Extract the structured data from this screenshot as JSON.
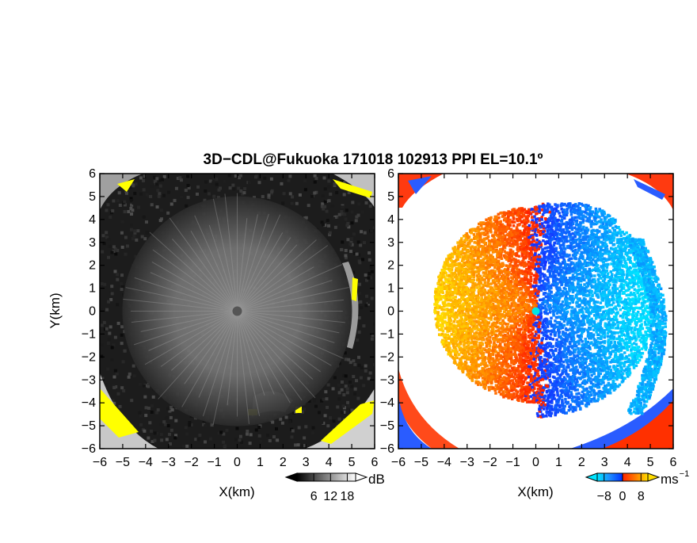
{
  "title": "3D−CDL@Fukuoka 171018 102913 PPI EL=10.1º",
  "chart_data": [
    {
      "type": "heatmap",
      "title": "",
      "xlabel": "X(km)",
      "ylabel": "Y(km)",
      "xlim": [
        -6,
        6
      ],
      "ylim": [
        -6,
        6
      ],
      "xticks": [
        "−6",
        "−5",
        "−4",
        "−3",
        "−2",
        "−1",
        "0",
        "1",
        "2",
        "3",
        "4",
        "5",
        "6"
      ],
      "yticks": [
        "−6",
        "−5",
        "−4",
        "−3",
        "−2",
        "−1",
        "0",
        "1",
        "2",
        "3",
        "4",
        "5",
        "6"
      ],
      "colorbar": {
        "label": "dB",
        "ticks": [
          "6",
          "12",
          "18"
        ],
        "tick_values": [
          6,
          12,
          18
        ],
        "range": [
          0,
          21
        ],
        "low_color": "#000000",
        "high_color": "#ffffff"
      },
      "highlight_color": "#ffff00"
    },
    {
      "type": "heatmap",
      "title": "",
      "xlabel": "X(km)",
      "ylabel": "",
      "xlim": [
        -6,
        6
      ],
      "ylim": [
        -6,
        6
      ],
      "xticks": [
        "−6",
        "−5",
        "−4",
        "−3",
        "−2",
        "−1",
        "0",
        "1",
        "2",
        "3",
        "4",
        "5",
        "6"
      ],
      "yticks": [
        "−6",
        "−5",
        "−4",
        "−3",
        "−2",
        "−1",
        "0",
        "1",
        "2",
        "3",
        "4",
        "5",
        "6"
      ],
      "colorbar": {
        "label": "ms",
        "label_sup": "−1",
        "ticks": [
          "−8",
          "0",
          "8"
        ],
        "tick_values": [
          -8,
          0,
          8
        ],
        "range": [
          -11,
          11
        ],
        "colors": [
          "#00e5ff",
          "#0044ff",
          "#ff2200",
          "#ffdd00"
        ]
      }
    }
  ]
}
